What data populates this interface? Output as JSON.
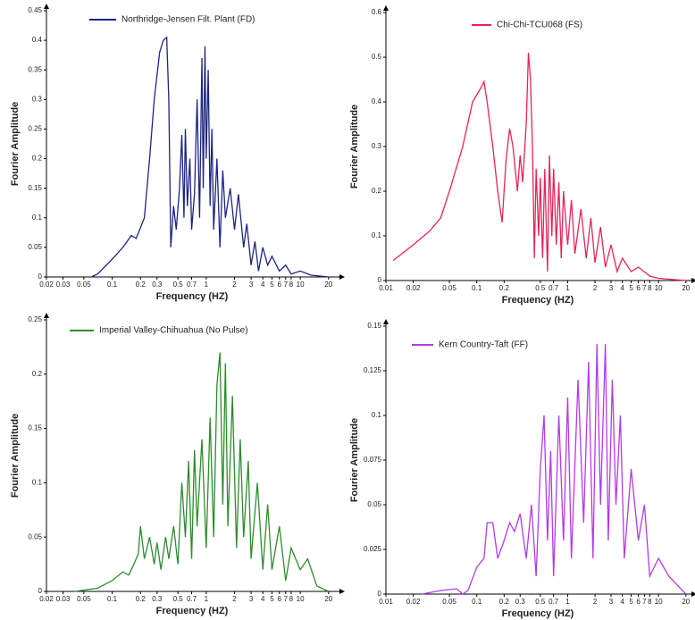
{
  "chart_data": [
    {
      "type": "line",
      "xscale": "log",
      "xlabel": "Frequency (HZ)",
      "ylabel": "Fourier Amplitude",
      "xlim": [
        0.02,
        25
      ],
      "ylim": [
        0,
        0.45
      ],
      "xticks": [
        0.02,
        0.03,
        0.05,
        0.1,
        0.2,
        0.3,
        0.5,
        0.7,
        1,
        2,
        3,
        4,
        5,
        6,
        7,
        8,
        10,
        20
      ],
      "yticks": [
        0,
        0.05,
        0.1,
        0.15,
        0.2,
        0.25,
        0.3,
        0.35,
        0.4,
        0.45
      ],
      "x": [
        0.06,
        0.07,
        0.1,
        0.13,
        0.16,
        0.18,
        0.22,
        0.25,
        0.28,
        0.32,
        0.35,
        0.38,
        0.4,
        0.42,
        0.45,
        0.48,
        0.52,
        0.55,
        0.58,
        0.6,
        0.63,
        0.67,
        0.7,
        0.75,
        0.8,
        0.85,
        0.9,
        0.93,
        0.97,
        1.0,
        1.05,
        1.1,
        1.15,
        1.2,
        1.3,
        1.4,
        1.5,
        1.6,
        1.8,
        2.0,
        2.2,
        2.5,
        2.7,
        3.0,
        3.3,
        3.6,
        4,
        4.5,
        5,
        6,
        7,
        8,
        10,
        13,
        20
      ],
      "series": [
        {
          "name": "Northridge-Jensen Filt. Plant (FD)",
          "color": "#1c2583",
          "values": [
            0.0,
            0.005,
            0.03,
            0.05,
            0.07,
            0.065,
            0.1,
            0.2,
            0.3,
            0.38,
            0.4,
            0.405,
            0.3,
            0.05,
            0.12,
            0.08,
            0.15,
            0.24,
            0.1,
            0.25,
            0.12,
            0.2,
            0.08,
            0.14,
            0.3,
            0.1,
            0.37,
            0.15,
            0.39,
            0.2,
            0.35,
            0.12,
            0.25,
            0.08,
            0.2,
            0.05,
            0.18,
            0.1,
            0.15,
            0.08,
            0.14,
            0.05,
            0.09,
            0.02,
            0.06,
            0.01,
            0.05,
            0.02,
            0.035,
            0.01,
            0.02,
            0.005,
            0.01,
            0.003,
            0.0
          ]
        }
      ]
    },
    {
      "type": "line",
      "xscale": "log",
      "xlabel": "Frequency (HZ)",
      "ylabel": "Fourier Amplitude",
      "xlim": [
        0.01,
        22
      ],
      "ylim": [
        0,
        0.6
      ],
      "xticks": [
        0.01,
        0.02,
        0.05,
        0.1,
        0.2,
        0.5,
        0.7,
        1,
        2,
        3,
        4,
        5,
        6,
        7,
        8,
        10,
        20
      ],
      "yticks": [
        0,
        0.1,
        0.2,
        0.3,
        0.4,
        0.5,
        0.6
      ],
      "x": [
        0.012,
        0.015,
        0.02,
        0.03,
        0.04,
        0.05,
        0.07,
        0.09,
        0.11,
        0.12,
        0.13,
        0.15,
        0.17,
        0.19,
        0.21,
        0.23,
        0.25,
        0.28,
        0.3,
        0.32,
        0.35,
        0.37,
        0.39,
        0.41,
        0.43,
        0.45,
        0.48,
        0.5,
        0.53,
        0.56,
        0.6,
        0.63,
        0.67,
        0.7,
        0.75,
        0.8,
        0.85,
        0.9,
        1.0,
        1.1,
        1.2,
        1.4,
        1.6,
        1.8,
        2,
        2.3,
        2.6,
        3,
        3.5,
        4,
        5,
        6,
        8,
        10,
        15,
        20
      ],
      "series": [
        {
          "name": "Chi-Chi-TCU068 (FS)",
          "color": "#e8235a",
          "values": [
            0.045,
            0.06,
            0.08,
            0.11,
            0.14,
            0.2,
            0.3,
            0.4,
            0.43,
            0.445,
            0.4,
            0.3,
            0.2,
            0.13,
            0.27,
            0.34,
            0.3,
            0.2,
            0.28,
            0.22,
            0.35,
            0.51,
            0.45,
            0.3,
            0.05,
            0.25,
            0.1,
            0.23,
            0.05,
            0.25,
            0.02,
            0.28,
            0.1,
            0.25,
            0.08,
            0.22,
            0.05,
            0.2,
            0.08,
            0.18,
            0.06,
            0.16,
            0.05,
            0.14,
            0.04,
            0.12,
            0.03,
            0.08,
            0.02,
            0.05,
            0.02,
            0.03,
            0.01,
            0.005,
            0.002,
            0.0
          ]
        }
      ]
    },
    {
      "type": "line",
      "xscale": "log",
      "xlabel": "Frequency (HZ)",
      "ylabel": "Fourier Amplitude",
      "xlim": [
        0.02,
        25
      ],
      "ylim": [
        0,
        0.25
      ],
      "xticks": [
        0.02,
        0.03,
        0.05,
        0.1,
        0.2,
        0.3,
        0.5,
        0.7,
        1,
        2,
        3,
        4,
        5,
        6,
        7,
        8,
        10,
        20
      ],
      "yticks": [
        0,
        0.05,
        0.1,
        0.15,
        0.2,
        0.25
      ],
      "x": [
        0.04,
        0.07,
        0.1,
        0.13,
        0.15,
        0.17,
        0.19,
        0.2,
        0.22,
        0.25,
        0.28,
        0.3,
        0.33,
        0.37,
        0.4,
        0.45,
        0.5,
        0.55,
        0.6,
        0.65,
        0.7,
        0.75,
        0.8,
        0.9,
        1.0,
        1.1,
        1.2,
        1.3,
        1.4,
        1.5,
        1.6,
        1.7,
        1.9,
        2.1,
        2.3,
        2.5,
        2.8,
        3,
        3.5,
        4,
        4.5,
        5,
        6,
        7,
        8,
        10,
        12,
        15,
        20
      ],
      "series": [
        {
          "name": "Imperial Valley-Chihuahua (No Pulse)",
          "color": "#2e8b2e",
          "values": [
            0.0,
            0.003,
            0.01,
            0.018,
            0.015,
            0.025,
            0.035,
            0.06,
            0.03,
            0.05,
            0.025,
            0.045,
            0.02,
            0.05,
            0.03,
            0.06,
            0.025,
            0.1,
            0.05,
            0.12,
            0.03,
            0.13,
            0.06,
            0.14,
            0.04,
            0.16,
            0.05,
            0.19,
            0.22,
            0.08,
            0.21,
            0.06,
            0.18,
            0.04,
            0.14,
            0.05,
            0.12,
            0.03,
            0.1,
            0.02,
            0.08,
            0.02,
            0.06,
            0.01,
            0.04,
            0.02,
            0.03,
            0.005,
            0.0
          ]
        }
      ]
    },
    {
      "type": "line",
      "xscale": "log",
      "xlabel": "Frequency (HZ)",
      "ylabel": "Fourier Amplitude",
      "xlim": [
        0.01,
        22
      ],
      "ylim": [
        0,
        0.15
      ],
      "xticks": [
        0.01,
        0.02,
        0.05,
        0.1,
        0.2,
        0.3,
        0.5,
        0.7,
        1,
        2,
        3,
        4,
        5,
        6,
        7,
        8,
        10,
        20
      ],
      "yticks": [
        0,
        0.025,
        0.05,
        0.075,
        0.1,
        0.125,
        0.15
      ],
      "x": [
        0.025,
        0.04,
        0.06,
        0.07,
        0.08,
        0.1,
        0.12,
        0.13,
        0.15,
        0.17,
        0.2,
        0.23,
        0.26,
        0.3,
        0.35,
        0.4,
        0.45,
        0.5,
        0.55,
        0.6,
        0.65,
        0.7,
        0.8,
        0.9,
        1.0,
        1.1,
        1.3,
        1.5,
        1.7,
        1.9,
        2.1,
        2.3,
        2.6,
        2.8,
        3.1,
        3.4,
        3.8,
        4.2,
        5,
        6,
        7,
        8,
        10,
        13,
        20
      ],
      "series": [
        {
          "name": "Kern Country-Taft (FF)",
          "color": "#b23be8",
          "values": [
            0.0,
            0.002,
            0.003,
            0.0,
            0.002,
            0.015,
            0.02,
            0.04,
            0.04,
            0.02,
            0.03,
            0.04,
            0.035,
            0.045,
            0.02,
            0.05,
            0.01,
            0.07,
            0.1,
            0.03,
            0.08,
            0.01,
            0.1,
            0.03,
            0.11,
            0.02,
            0.12,
            0.04,
            0.13,
            0.02,
            0.14,
            0.05,
            0.14,
            0.03,
            0.12,
            0.05,
            0.1,
            0.02,
            0.07,
            0.03,
            0.05,
            0.01,
            0.02,
            0.01,
            0.0
          ]
        }
      ]
    }
  ]
}
